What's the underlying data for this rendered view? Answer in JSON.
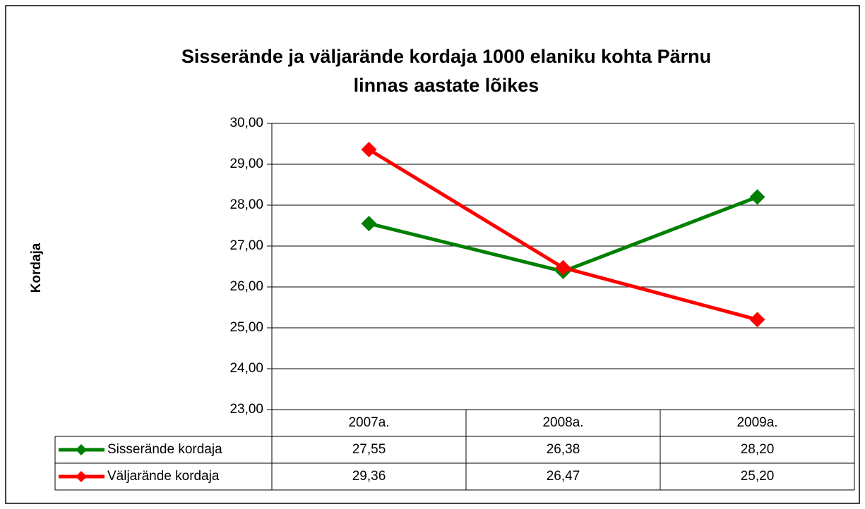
{
  "chart_data": {
    "type": "line",
    "title": [
      "Sisserände ja väljarände kordaja 1000 elaniku kohta Pärnu",
      "linnas aastate lõikes"
    ],
    "y_label": "Kordaja",
    "categories": [
      "2007a.",
      "2008a.",
      "2009a."
    ],
    "series": [
      {
        "name": "Sisserände kordaja",
        "color": "#008000",
        "values": [
          27.55,
          26.38,
          28.2
        ],
        "value_labels": [
          "27,55",
          "26,38",
          "28,20"
        ]
      },
      {
        "name": "Väljarände kordaja",
        "color": "#ff0000",
        "values": [
          29.36,
          26.47,
          25.2
        ],
        "value_labels": [
          "29,36",
          "26,47",
          "25,20"
        ]
      }
    ],
    "ylim": [
      23,
      30
    ],
    "yticks": [
      {
        "value": 23,
        "label": "23,00"
      },
      {
        "value": 24,
        "label": "24,00"
      },
      {
        "value": 25,
        "label": "25,00"
      },
      {
        "value": 26,
        "label": "26,00"
      },
      {
        "value": 27,
        "label": "27,00"
      },
      {
        "value": 28,
        "label": "28,00"
      },
      {
        "value": 29,
        "label": "29,00"
      },
      {
        "value": 30,
        "label": "30,00"
      }
    ],
    "grid": true,
    "data_table": true
  }
}
